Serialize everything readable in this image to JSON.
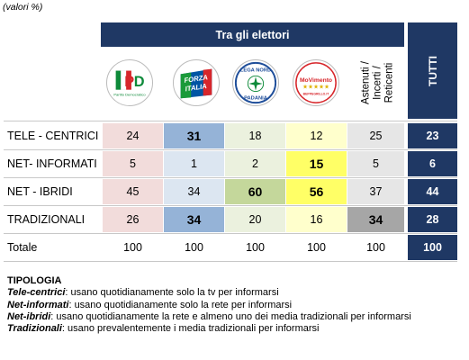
{
  "unit_note": "(valori %)",
  "header": {
    "group_title": "Tra gli elettori",
    "tutti_label": "TUTTI"
  },
  "parties": [
    {
      "icon": "pd-logo-icon",
      "logo_text": "Partito Democratico"
    },
    {
      "icon": "forza-italia-logo-icon",
      "logo_text": "FORZA ITALIA"
    },
    {
      "icon": "lega-nord-logo-icon",
      "logo_text": "LEGA NORD PADANIA"
    },
    {
      "icon": "movimento-5-stelle-logo-icon",
      "logo_text": "MOVIMENTO 5 STELLE"
    }
  ],
  "abstainers_label": [
    "Astenuti /",
    "Incerti /",
    "Reticenti"
  ],
  "rows": [
    {
      "label": "TELE - CENTRICI",
      "values": [
        "24",
        "31",
        "18",
        "12",
        "25"
      ],
      "tutti": "23"
    },
    {
      "label": "NET- INFORMATI",
      "values": [
        "5",
        "1",
        "2",
        "15",
        "5"
      ],
      "tutti": "6"
    },
    {
      "label": "NET - IBRIDI",
      "values": [
        "45",
        "34",
        "60",
        "56",
        "37"
      ],
      "tutti": "44"
    },
    {
      "label": "TRADIZIONALI",
      "values": [
        "26",
        "34",
        "20",
        "16",
        "34"
      ],
      "tutti": "28"
    },
    {
      "label": "Totale",
      "values": [
        "100",
        "100",
        "100",
        "100",
        "100"
      ],
      "tutti": "100"
    }
  ],
  "colors": {
    "header_navy": "#1f3864",
    "pd_pink": "#f2dcdb",
    "fi_blue": "#dce6f1",
    "fi_blue_hi": "#95b3d7",
    "ln_green": "#ebf1de",
    "ln_green_hi": "#c4d79b",
    "m5s_yellow": "#ffffcc",
    "m5s_yellow_hi": "#ffff66",
    "abst_grey": "#e6e6e6",
    "abst_grey_hi": "#a6a6a6"
  },
  "legend": {
    "title": "TIPOLOGIA",
    "items": [
      {
        "term": "Tele-centrici",
        "desc": ":  usano quotidianamente solo la tv per informarsi"
      },
      {
        "term": "Net-informati",
        "desc": ":  usano quotidianamente solo la rete per informarsi"
      },
      {
        "term": "Net-ibridi",
        "desc": ":  usano quotidianamente la rete e almeno uno dei media tradizionali per informarsi"
      },
      {
        "term": "Tradizionali",
        "desc": ":  usano prevalentemente i media tradizionali per informarsi"
      }
    ]
  }
}
